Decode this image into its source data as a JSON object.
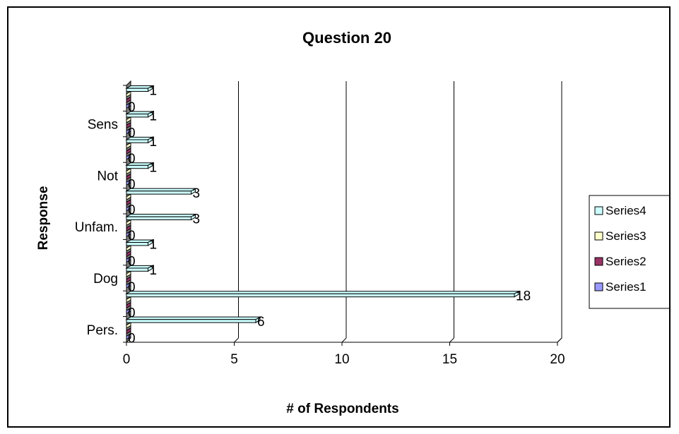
{
  "chart_data": {
    "type": "bar",
    "orientation": "horizontal",
    "title": "Question 20",
    "xlabel": "# of Respondents",
    "ylabel": "Response",
    "xlim": [
      0,
      20
    ],
    "x_ticks": [
      "0",
      "5",
      "10",
      "15",
      "20"
    ],
    "categories": [
      "Pers.",
      "",
      "Dog",
      "",
      "Unfam.",
      "",
      "Not",
      "",
      "Sens",
      ""
    ],
    "series": [
      {
        "name": "Series1",
        "color": "#9999FF",
        "values": [
          0,
          0,
          0,
          0,
          0,
          0,
          0,
          0,
          0,
          0
        ]
      },
      {
        "name": "Series2",
        "color": "#993366",
        "values": [
          0,
          0,
          0,
          0,
          0,
          0,
          0,
          0,
          0,
          0
        ]
      },
      {
        "name": "Series3",
        "color": "#FFFFCC",
        "values": [
          0,
          0,
          0,
          0,
          0,
          0,
          0,
          0,
          0,
          0
        ]
      },
      {
        "name": "Series4",
        "color": "#CCFFFF",
        "values": [
          6,
          18,
          1,
          1,
          3,
          3,
          1,
          1,
          1,
          1
        ]
      }
    ],
    "data_labels": true,
    "grid": "vertical",
    "legend_position": "right",
    "legend_order": [
      "Series4",
      "Series3",
      "Series2",
      "Series1"
    ]
  }
}
